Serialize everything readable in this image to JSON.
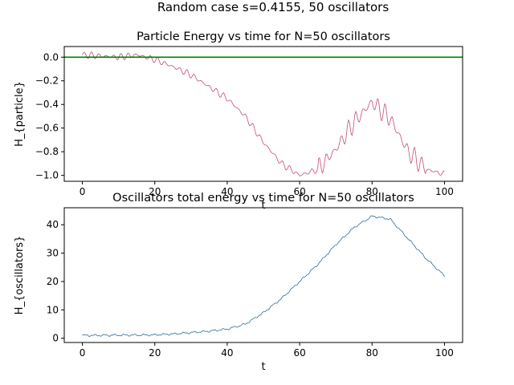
{
  "suptitle": "Random case s=0.4155, 50 oscillators",
  "chart_data": [
    {
      "type": "line",
      "title": "Particle Energy vs time for N=50 oscillators",
      "xlabel": "t",
      "ylabel": "H_{particle}",
      "xlim": [
        -5,
        105
      ],
      "ylim": [
        -1.05,
        0.09
      ],
      "xticks": [
        0,
        20,
        40,
        60,
        80,
        100
      ],
      "yticks": [
        0.0,
        -0.2,
        -0.4,
        -0.6,
        -0.8,
        -1.0
      ],
      "ytick_labels": [
        "0.0",
        "−0.2",
        "−0.4",
        "−0.6",
        "−0.8",
        "−1.0"
      ],
      "reference_line": {
        "y": 0.0,
        "color": "#008000"
      },
      "series": [
        {
          "color": "#c44e6e",
          "x": [
            0,
            5,
            10,
            15,
            20,
            25,
            30,
            35,
            40,
            45,
            50,
            55,
            60,
            65,
            70,
            75,
            80,
            85,
            90,
            95,
            100
          ],
          "y": [
            0.02,
            0.01,
            0.0,
            0.02,
            -0.02,
            -0.08,
            -0.15,
            -0.25,
            -0.35,
            -0.5,
            -0.72,
            -0.9,
            -1.0,
            -0.95,
            -0.78,
            -0.55,
            -0.38,
            -0.52,
            -0.8,
            -0.95,
            -0.99
          ]
        }
      ]
    },
    {
      "type": "line",
      "title": "Oscillators total energy vs time for N=50 oscillators",
      "xlabel": "t",
      "ylabel": "H_{oscillators}",
      "xlim": [
        -5,
        105
      ],
      "ylim": [
        -1.5,
        46
      ],
      "xticks": [
        0,
        20,
        40,
        60,
        80,
        100
      ],
      "yticks": [
        0,
        10,
        20,
        30,
        40
      ],
      "ytick_labels": [
        "0",
        "10",
        "20",
        "30",
        "40"
      ],
      "series": [
        {
          "color": "#2a6f97",
          "x": [
            0,
            5,
            10,
            15,
            20,
            25,
            30,
            35,
            40,
            45,
            50,
            55,
            60,
            65,
            70,
            75,
            80,
            85,
            90,
            95,
            100
          ],
          "y": [
            1.0,
            1.0,
            1.1,
            1.1,
            1.2,
            1.5,
            2.0,
            2.5,
            3.2,
            5.0,
            9.0,
            14.0,
            20.0,
            26.0,
            33.0,
            39.0,
            43.0,
            42.0,
            35.0,
            28.0,
            22.0
          ]
        }
      ]
    }
  ]
}
